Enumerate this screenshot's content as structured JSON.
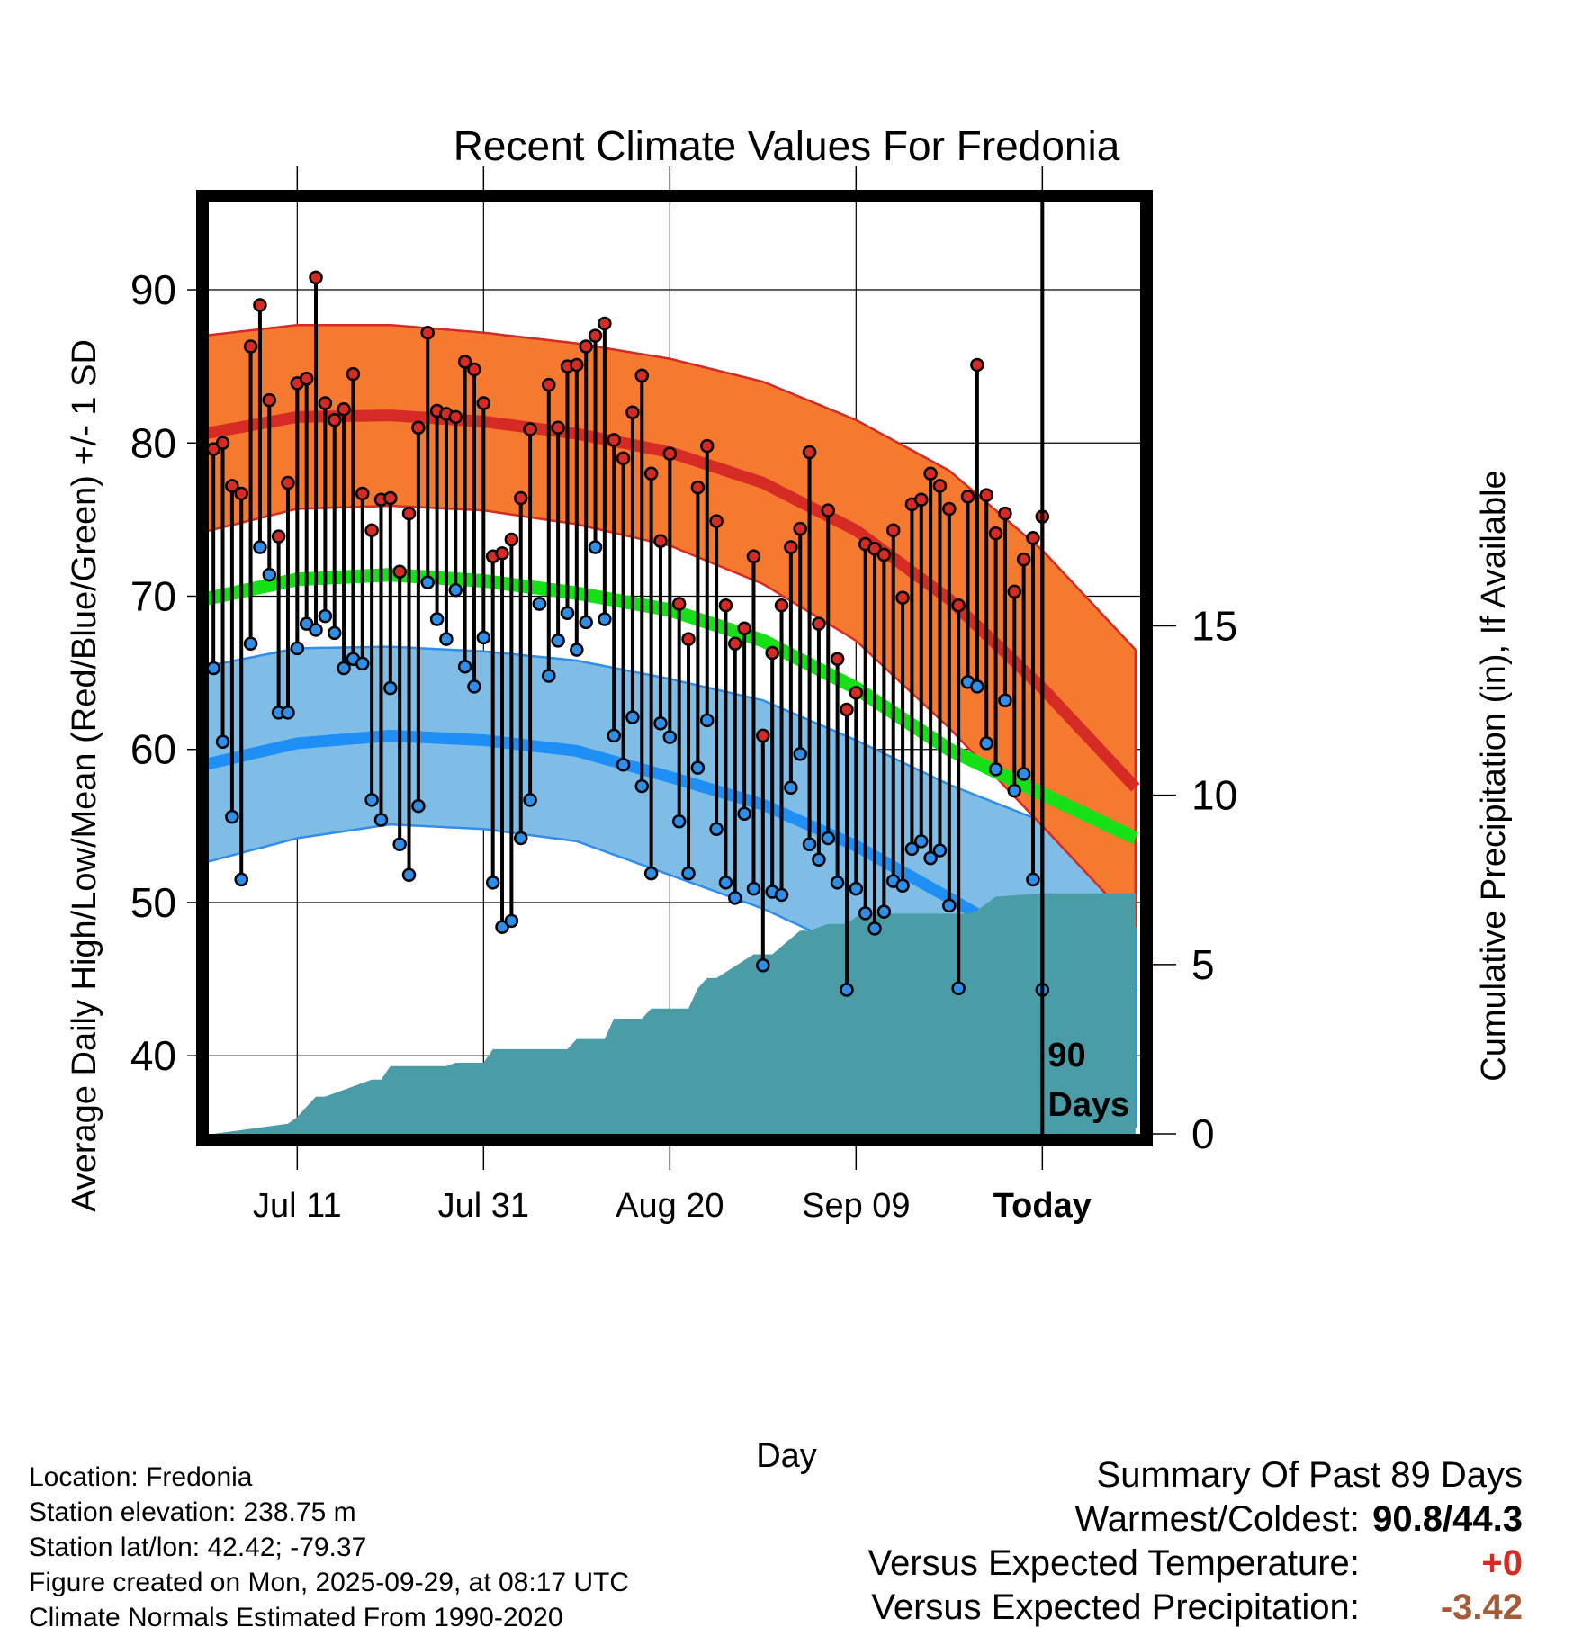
{
  "colors": {
    "high_band": "#f5792f",
    "high_band_edge": "#d62a24",
    "high_mean": "#d62a24",
    "low_band": "#7fbde6",
    "low_band_edge": "#2f8fe8",
    "low_mean": "#1e8ff5",
    "mean_line": "#16e016",
    "precip_fill": "#4a9ca6",
    "high_marker": "#d62a24",
    "low_marker": "#2f8fe8"
  },
  "chart_data": {
    "type": "climate-range",
    "title": "Recent Climate Values For Fredonia",
    "xlabel": "Day",
    "ylabel_left": "Average Daily High/Low/Mean (Red/Blue/Green) +/- 1 SD",
    "ylabel_right": "Cumulative Precipitation (in), If Available",
    "ylim_left": [
      34.9,
      95.7
    ],
    "ylim_right": [
      0,
      27.5
    ],
    "xlim_days": [
      -89.5,
      10.5
    ],
    "x_unit": "days relative to today",
    "left_ticks": [
      "40",
      "50",
      "60",
      "70",
      "80",
      "90"
    ],
    "right_ticks": [
      "0",
      "5",
      "10",
      "15"
    ],
    "x_tick_labels": [
      {
        "label": "Jul 11",
        "day": -80
      },
      {
        "label": "Jul 31",
        "day": -60
      },
      {
        "label": "Aug 20",
        "day": -40
      },
      {
        "label": "Sep 09",
        "day": -20
      },
      {
        "label": "Today",
        "day": 0
      }
    ],
    "period_label": [
      "90",
      "Days"
    ],
    "normals": {
      "day": [
        -90,
        -80,
        -70,
        -60,
        -50,
        -40,
        -30,
        -20,
        -10,
        0,
        10
      ],
      "high_mean": [
        80.6,
        81.7,
        81.8,
        81.4,
        80.6,
        79.4,
        77.4,
        74.3,
        69.8,
        64.0,
        57.5
      ],
      "high_sd": [
        6.4,
        6.0,
        5.9,
        5.8,
        5.9,
        6.1,
        6.6,
        7.2,
        8.4,
        9.0,
        9.0
      ],
      "low_mean": [
        59.0,
        60.4,
        60.9,
        60.6,
        59.9,
        58.2,
        56.4,
        53.7,
        50.3,
        46.8,
        44.0
      ],
      "low_sd": [
        6.4,
        6.2,
        5.8,
        5.8,
        5.9,
        6.4,
        6.8,
        6.9,
        7.4,
        8.5,
        8.6
      ],
      "mean": [
        69.8,
        71.1,
        71.4,
        71.0,
        70.2,
        69.1,
        67.1,
        64.0,
        60.0,
        57.1,
        54.2
      ]
    },
    "daily_high": [
      79.6,
      80.0,
      77.2,
      76.7,
      86.3,
      89.0,
      82.8,
      73.9,
      77.4,
      83.9,
      84.2,
      90.8,
      82.6,
      81.5,
      82.2,
      84.5,
      76.7,
      74.3,
      76.3,
      76.4,
      71.6,
      75.4,
      81.0,
      87.2,
      82.1,
      81.9,
      81.7,
      85.3,
      84.8,
      82.6,
      72.6,
      72.8,
      73.7,
      76.4,
      80.9,
      69.5,
      83.8,
      81.0,
      85.0,
      85.1,
      86.3,
      87.0,
      87.8,
      80.2,
      79.0,
      82.0,
      84.4,
      78.0,
      73.6,
      79.3,
      69.5,
      67.2,
      77.1,
      79.8,
      74.9,
      69.4,
      66.9,
      67.9,
      72.6,
      60.9,
      66.3,
      69.4,
      73.2,
      74.4,
      79.4,
      68.2,
      75.6,
      65.9,
      62.6,
      63.7,
      73.4,
      73.1,
      72.7,
      74.3,
      69.9,
      76.0,
      76.3,
      78.0,
      77.2,
      75.7,
      69.4,
      76.5,
      85.1,
      76.6,
      74.1,
      75.4,
      70.3,
      72.4,
      73.8,
      75.2
    ],
    "daily_low": [
      65.3,
      60.5,
      55.6,
      51.5,
      66.9,
      73.2,
      71.4,
      62.4,
      62.4,
      66.6,
      68.2,
      67.8,
      68.7,
      67.6,
      65.3,
      65.9,
      65.6,
      56.7,
      55.4,
      64.0,
      53.8,
      51.8,
      56.3,
      70.9,
      68.5,
      67.2,
      70.4,
      65.4,
      64.1,
      67.3,
      51.3,
      48.4,
      48.8,
      54.2,
      56.7,
      69.5,
      64.8,
      67.1,
      68.9,
      66.5,
      68.3,
      73.2,
      68.5,
      60.9,
      59.0,
      62.1,
      57.6,
      51.9,
      61.7,
      60.8,
      55.3,
      51.9,
      58.8,
      61.9,
      54.8,
      51.3,
      50.3,
      55.8,
      50.9,
      45.9,
      50.7,
      50.5,
      57.5,
      59.7,
      53.8,
      52.8,
      54.2,
      51.3,
      44.3,
      50.9,
      49.3,
      48.3,
      49.4,
      51.4,
      51.1,
      53.5,
      54.0,
      52.9,
      53.4,
      49.8,
      44.4,
      64.4,
      64.1,
      60.4,
      58.7,
      63.2,
      57.3,
      58.4,
      51.5,
      44.3
    ],
    "cumulative_precip": {
      "day": [
        -89,
        -81,
        -80,
        -78,
        -77,
        -73,
        -72,
        -71,
        -70,
        -64,
        -63,
        -60,
        -59,
        -51,
        -50,
        -47,
        -46,
        -43,
        -42,
        -40,
        -38,
        -37,
        -36,
        -35,
        -31,
        -30,
        -29,
        -26,
        -25,
        -23,
        -21,
        -20,
        -19,
        -8,
        -7,
        -6,
        -5,
        0,
        10
      ],
      "inches": [
        0,
        0.3,
        0.5,
        1.1,
        1.1,
        1.5,
        1.6,
        1.6,
        2.0,
        2.0,
        2.1,
        2.1,
        2.5,
        2.5,
        2.8,
        2.8,
        3.4,
        3.4,
        3.7,
        3.7,
        3.7,
        4.3,
        4.6,
        4.6,
        5.3,
        5.3,
        5.3,
        6.0,
        6.0,
        6.2,
        6.2,
        6.4,
        6.5,
        6.5,
        6.6,
        6.8,
        7.0,
        7.1,
        7.1
      ]
    }
  },
  "footer": {
    "location": "Location: Fredonia",
    "elevation": "Station elevation: 238.75 m",
    "latlon": "Station lat/lon: 42.42; -79.37",
    "created": "Figure created on Mon, 2025-09-29, at 08:17 UTC",
    "normals_note": "Climate Normals Estimated From 1990-2020"
  },
  "summary": {
    "title": "Summary Of Past 89 Days",
    "warm_cold_label": "Warmest/Coldest:",
    "warm_cold_value": "90.8/44.3",
    "temp_label": "Versus Expected Temperature:",
    "temp_value": "+0",
    "temp_color": "#d62a24",
    "precip_label": "Versus Expected Precipitation:",
    "precip_value": "-3.42",
    "precip_color": "#a65a35"
  }
}
